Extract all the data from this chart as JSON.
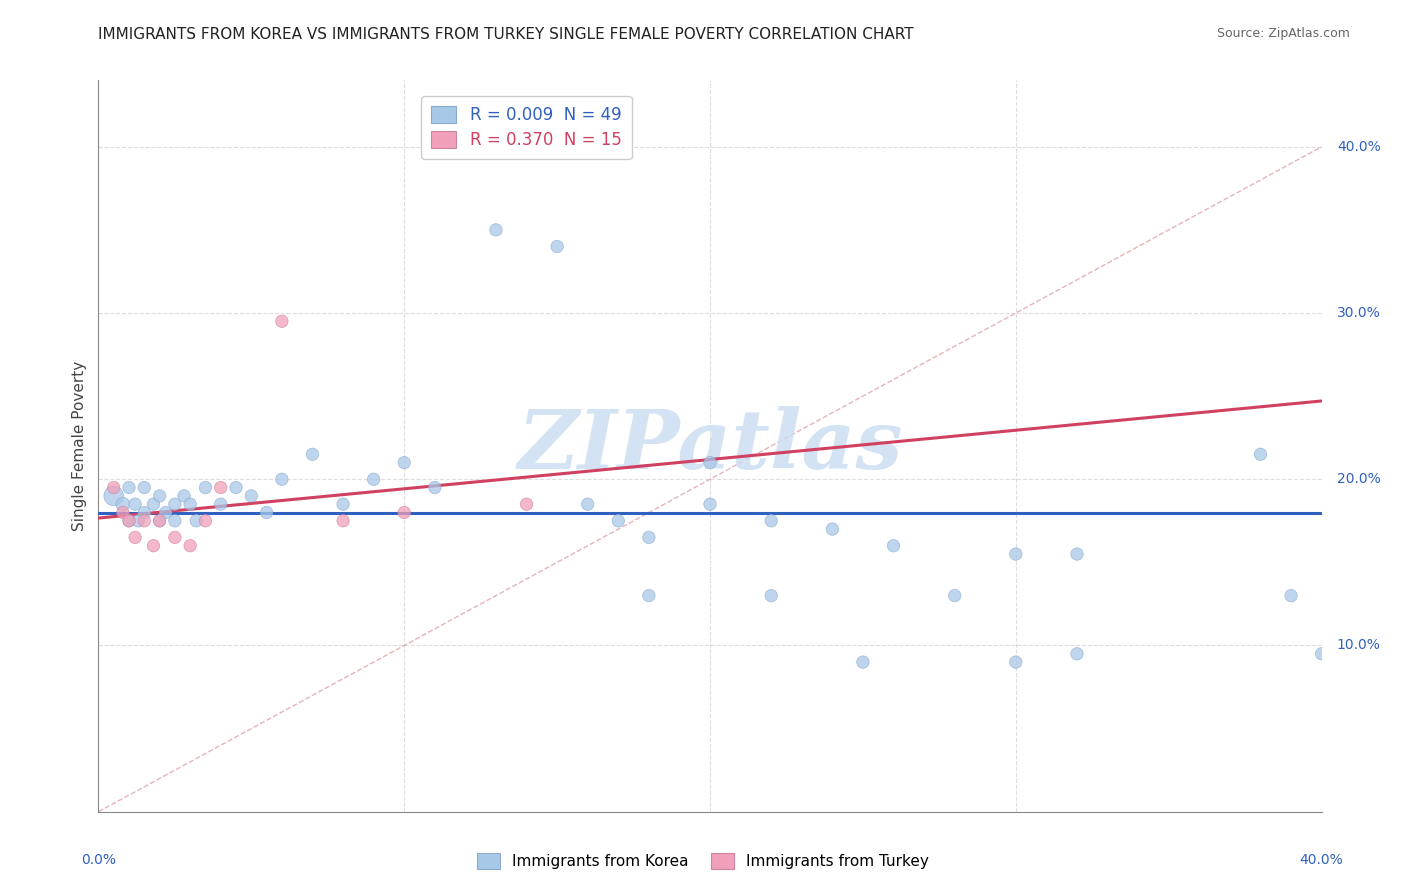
{
  "title": "IMMIGRANTS FROM KOREA VS IMMIGRANTS FROM TURKEY SINGLE FEMALE POVERTY CORRELATION CHART",
  "source": "Source: ZipAtlas.com",
  "ylabel": "Single Female Poverty",
  "korea_color": "#A8C8E8",
  "turkey_color": "#F0A0B8",
  "korea_line_color": "#3060C0",
  "turkey_line_color": "#D04060",
  "diag_line_color": "#E0A0A8",
  "grid_color": "#DDDDDD",
  "background_color": "#FFFFFF",
  "watermark_color": "#C8DCF0",
  "xmin": 0.0,
  "xmax": 0.4,
  "ymin": 0.0,
  "ymax": 0.44,
  "korea_x": [
    0.005,
    0.008,
    0.01,
    0.01,
    0.012,
    0.013,
    0.015,
    0.015,
    0.018,
    0.02,
    0.02,
    0.022,
    0.025,
    0.025,
    0.028,
    0.03,
    0.032,
    0.035,
    0.04,
    0.045,
    0.05,
    0.055,
    0.06,
    0.07,
    0.08,
    0.09,
    0.1,
    0.11,
    0.13,
    0.15,
    0.16,
    0.17,
    0.18,
    0.2,
    0.22,
    0.24,
    0.26,
    0.3,
    0.32,
    0.2,
    0.28,
    0.3,
    0.32,
    0.38,
    0.39,
    0.4,
    0.18,
    0.22,
    0.25
  ],
  "korea_y": [
    0.19,
    0.185,
    0.195,
    0.175,
    0.185,
    0.175,
    0.195,
    0.18,
    0.185,
    0.19,
    0.175,
    0.18,
    0.185,
    0.175,
    0.19,
    0.185,
    0.175,
    0.195,
    0.185,
    0.195,
    0.19,
    0.18,
    0.2,
    0.215,
    0.185,
    0.2,
    0.21,
    0.195,
    0.35,
    0.34,
    0.185,
    0.175,
    0.165,
    0.21,
    0.175,
    0.17,
    0.16,
    0.155,
    0.155,
    0.185,
    0.13,
    0.09,
    0.095,
    0.215,
    0.13,
    0.095,
    0.13,
    0.13,
    0.09
  ],
  "korea_size": [
    200,
    100,
    80,
    80,
    80,
    80,
    80,
    80,
    80,
    80,
    80,
    80,
    80,
    80,
    80,
    80,
    80,
    80,
    80,
    80,
    80,
    80,
    80,
    80,
    80,
    80,
    80,
    80,
    80,
    80,
    80,
    80,
    80,
    80,
    80,
    80,
    80,
    80,
    80,
    80,
    80,
    80,
    80,
    80,
    80,
    80,
    80,
    80,
    80
  ],
  "turkey_x": [
    0.005,
    0.008,
    0.01,
    0.012,
    0.015,
    0.018,
    0.02,
    0.025,
    0.03,
    0.035,
    0.04,
    0.06,
    0.08,
    0.1,
    0.14
  ],
  "turkey_y": [
    0.195,
    0.18,
    0.175,
    0.165,
    0.175,
    0.16,
    0.175,
    0.165,
    0.16,
    0.175,
    0.195,
    0.295,
    0.175,
    0.18,
    0.185
  ],
  "turkey_size": [
    80,
    80,
    80,
    80,
    80,
    80,
    80,
    80,
    80,
    80,
    80,
    80,
    80,
    80,
    80
  ]
}
